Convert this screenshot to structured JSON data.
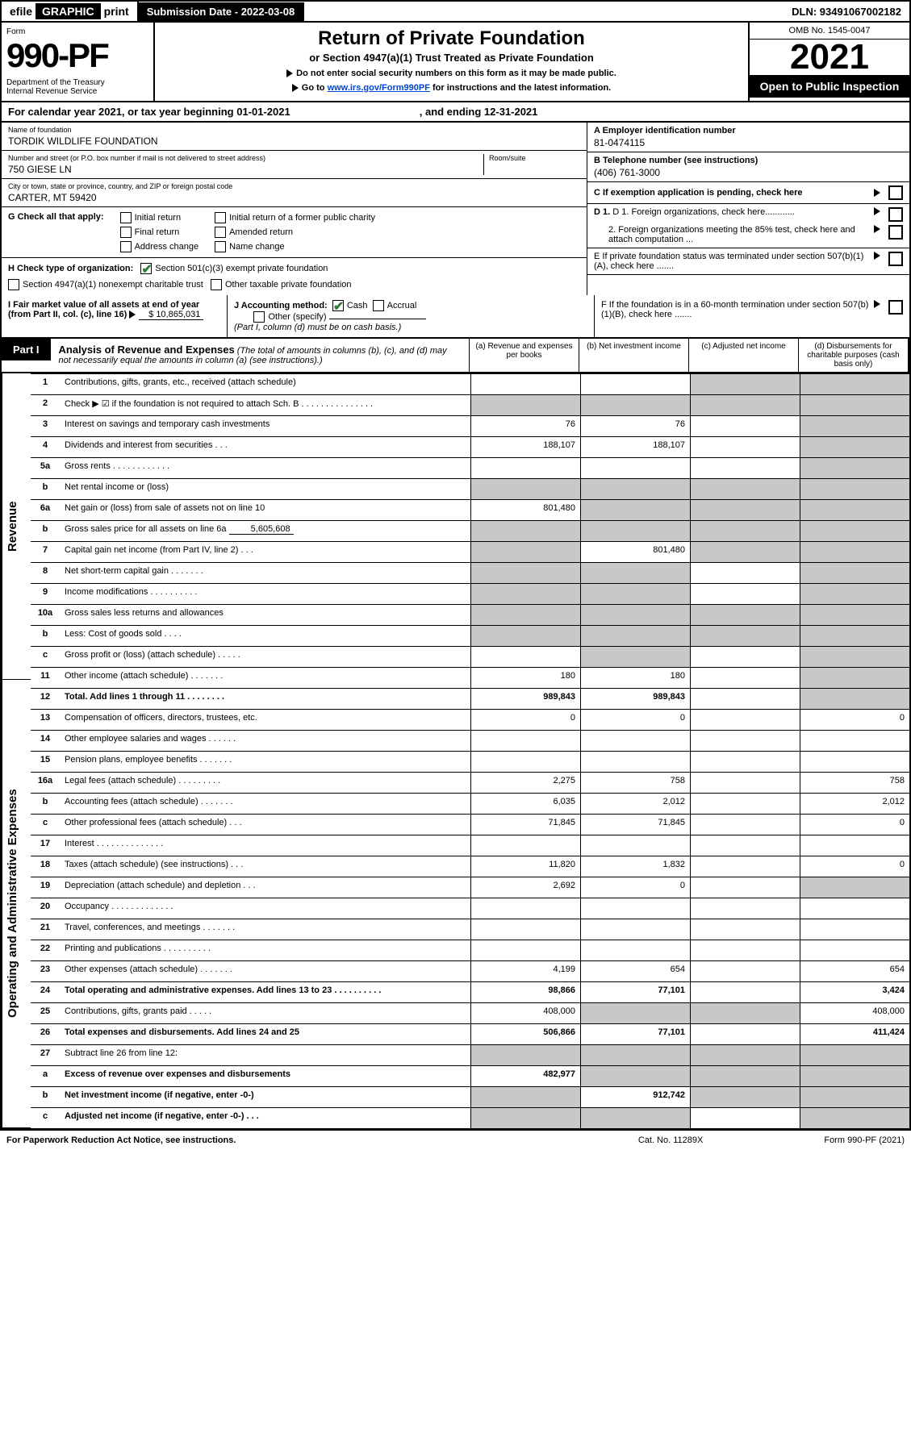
{
  "top": {
    "efile_pre": "efile",
    "efile_graphic": "GRAPHIC",
    "efile_post": "print",
    "submission_label": "Submission Date - 2022-03-08",
    "dln": "DLN: 93491067002182"
  },
  "header": {
    "form_word": "Form",
    "form_num": "990-PF",
    "dept": "Department of the Treasury\nInternal Revenue Service",
    "title": "Return of Private Foundation",
    "subtitle": "or Section 4947(a)(1) Trust Treated as Private Foundation",
    "note1": "Do not enter social security numbers on this form as it may be made public.",
    "note2_pre": "Go to ",
    "note2_link": "www.irs.gov/Form990PF",
    "note2_post": " for instructions and the latest information.",
    "omb": "OMB No. 1545-0047",
    "year": "2021",
    "open": "Open to Public Inspection"
  },
  "cal": {
    "text": "For calendar year 2021, or tax year beginning 01-01-2021",
    "ending": ", and ending 12-31-2021"
  },
  "info": {
    "name_lbl": "Name of foundation",
    "name_val": "TORDIK WILDLIFE FOUNDATION",
    "addr_lbl": "Number and street (or P.O. box number if mail is not delivered to street address)",
    "addr_val": "750 GIESE LN",
    "room_lbl": "Room/suite",
    "city_lbl": "City or town, state or province, country, and ZIP or foreign postal code",
    "city_val": "CARTER, MT  59420",
    "A_lbl": "A Employer identification number",
    "A_val": "81-0474115",
    "B_lbl": "B Telephone number (see instructions)",
    "B_val": "(406) 761-3000",
    "C_lbl": "C If exemption application is pending, check here",
    "D1": "D 1. Foreign organizations, check here............",
    "D2": "2. Foreign organizations meeting the 85% test, check here and attach computation ...",
    "E": "E  If private foundation status was terminated under section 507(b)(1)(A), check here .......",
    "F": "F  If the foundation is in a 60-month termination under section 507(b)(1)(B), check here .......",
    "G_lbl": "G Check all that apply:",
    "G_opts": [
      "Initial return",
      "Final return",
      "Address change",
      "Initial return of a former public charity",
      "Amended return",
      "Name change"
    ],
    "H_lbl": "H Check type of organization:",
    "H1": "Section 501(c)(3) exempt private foundation",
    "H2": "Section 4947(a)(1) nonexempt charitable trust",
    "H3": "Other taxable private foundation",
    "I_lbl": "I Fair market value of all assets at end of year (from Part II, col. (c), line 16)",
    "I_val": "$  10,865,031",
    "J_lbl": "J Accounting method:",
    "J_cash": "Cash",
    "J_accr": "Accrual",
    "J_other": "Other (specify)",
    "J_note": "(Part I, column (d) must be on cash basis.)"
  },
  "part1": {
    "tab": "Part I",
    "title": "Analysis of Revenue and Expenses",
    "desc": "(The total of amounts in columns (b), (c), and (d) may not necessarily equal the amounts in column (a) (see instructions).)",
    "col_a": "(a)  Revenue and expenses per books",
    "col_b": "(b)  Net investment income",
    "col_c": "(c)  Adjusted net income",
    "col_d": "(d)  Disbursements for charitable purposes (cash basis only)"
  },
  "sides": {
    "rev": "Revenue",
    "ops": "Operating and Administrative Expenses"
  },
  "rows": {
    "r1": {
      "n": "1",
      "d": "Contributions, gifts, grants, etc., received (attach schedule)"
    },
    "r2": {
      "n": "2",
      "d": "Check ▶ ☑ if the foundation is not required to attach Sch. B   .  .  .  .  .  .  .  .  .  .  .  .  .  .  ."
    },
    "r3": {
      "n": "3",
      "d": "Interest on savings and temporary cash investments",
      "a": "76",
      "b": "76"
    },
    "r4": {
      "n": "4",
      "d": "Dividends and interest from securities   .    .    .",
      "a": "188,107",
      "b": "188,107"
    },
    "r5a": {
      "n": "5a",
      "d": "Gross rents   .   .   .   .   .   .   .   .   .   .   .   ."
    },
    "r5b": {
      "n": "b",
      "d": "Net rental income or (loss)"
    },
    "r6a": {
      "n": "6a",
      "d": "Net gain or (loss) from sale of assets not on line 10",
      "a": "801,480"
    },
    "r6b": {
      "n": "b",
      "d": "Gross sales price for all assets on line 6a",
      "u": "5,605,608"
    },
    "r7": {
      "n": "7",
      "d": "Capital gain net income (from Part IV, line 2)   .    .    .",
      "b": "801,480"
    },
    "r8": {
      "n": "8",
      "d": "Net short-term capital gain   .   .   .   .   .   .   ."
    },
    "r9": {
      "n": "9",
      "d": "Income modifications  .   .   .   .   .   .   .   .   .   ."
    },
    "r10a": {
      "n": "10a",
      "d": "Gross sales less returns and allowances"
    },
    "r10b": {
      "n": "b",
      "d": "Less: Cost of goods sold   .    .    .    ."
    },
    "r10c": {
      "n": "c",
      "d": "Gross profit or (loss) (attach schedule)   .    .    .    .    ."
    },
    "r11": {
      "n": "11",
      "d": "Other income (attach schedule)   .   .   .   .   .   .   .",
      "a": "180",
      "b": "180"
    },
    "r12": {
      "n": "12",
      "d": "Total. Add lines 1 through 11   .   .   .   .   .   .   .   .",
      "a": "989,843",
      "b": "989,843",
      "bold": true
    },
    "r13": {
      "n": "13",
      "d": "Compensation of officers, directors, trustees, etc.",
      "a": "0",
      "b": "0",
      "dd": "0"
    },
    "r14": {
      "n": "14",
      "d": "Other employee salaries and wages   .   .   .   .   .   ."
    },
    "r15": {
      "n": "15",
      "d": "Pension plans, employee benefits   .   .   .   .   .   .   ."
    },
    "r16a": {
      "n": "16a",
      "d": "Legal fees (attach schedule)  .   .   .   .   .   .   .   .   .",
      "a": "2,275",
      "b": "758",
      "dd": "758"
    },
    "r16b": {
      "n": "b",
      "d": "Accounting fees (attach schedule)  .   .   .   .   .   .   .",
      "a": "6,035",
      "b": "2,012",
      "dd": "2,012"
    },
    "r16c": {
      "n": "c",
      "d": "Other professional fees (attach schedule)   .    .    .",
      "a": "71,845",
      "b": "71,845",
      "dd": "0"
    },
    "r17": {
      "n": "17",
      "d": "Interest  .   .   .   .   .   .   .   .   .   .   .   .   .   ."
    },
    "r18": {
      "n": "18",
      "d": "Taxes (attach schedule) (see instructions)   .    .    .",
      "a": "11,820",
      "b": "1,832",
      "dd": "0"
    },
    "r19": {
      "n": "19",
      "d": "Depreciation (attach schedule) and depletion   .    .    .",
      "a": "2,692",
      "b": "0"
    },
    "r20": {
      "n": "20",
      "d": "Occupancy  .   .   .   .   .   .   .   .   .   .   .   .   ."
    },
    "r21": {
      "n": "21",
      "d": "Travel, conferences, and meetings  .   .   .   .   .   .   ."
    },
    "r22": {
      "n": "22",
      "d": "Printing and publications  .   .   .   .   .   .   .   .   .   ."
    },
    "r23": {
      "n": "23",
      "d": "Other expenses (attach schedule)  .   .   .   .   .   .   .",
      "a": "4,199",
      "b": "654",
      "dd": "654"
    },
    "r24": {
      "n": "24",
      "d": "Total operating and administrative expenses. Add lines 13 to 23   .   .   .   .   .   .   .   .   .   .",
      "a": "98,866",
      "b": "77,101",
      "dd": "3,424",
      "bold": true
    },
    "r25": {
      "n": "25",
      "d": "Contributions, gifts, grants paid   .    .    .    .    .",
      "a": "408,000",
      "dd": "408,000"
    },
    "r26": {
      "n": "26",
      "d": "Total expenses and disbursements. Add lines 24 and 25",
      "a": "506,866",
      "b": "77,101",
      "dd": "411,424",
      "bold": true
    },
    "r27": {
      "n": "27",
      "d": "Subtract line 26 from line 12:"
    },
    "r27a": {
      "n": "a",
      "d": "Excess of revenue over expenses and disbursements",
      "a": "482,977",
      "bold": true
    },
    "r27b": {
      "n": "b",
      "d": "Net investment income (if negative, enter -0-)",
      "b": "912,742",
      "bold": true
    },
    "r27c": {
      "n": "c",
      "d": "Adjusted net income (if negative, enter -0-)   .    .    .",
      "bold": true
    }
  },
  "foot": {
    "l": "For Paperwork Reduction Act Notice, see instructions.",
    "c": "Cat. No. 11289X",
    "r": "Form 990-PF (2021)"
  },
  "greys": {
    "r1": [
      "c",
      "d"
    ],
    "r2": [
      "a",
      "b",
      "c",
      "d"
    ],
    "r3": [
      "d"
    ],
    "r4": [
      "d"
    ],
    "r5a": [
      "d"
    ],
    "r5b": [
      "a",
      "b",
      "c",
      "d"
    ],
    "r6a": [
      "b",
      "c",
      "d"
    ],
    "r6b": [
      "a",
      "b",
      "c",
      "d"
    ],
    "r7": [
      "a",
      "c",
      "d"
    ],
    "r8": [
      "a",
      "b",
      "d"
    ],
    "r9": [
      "a",
      "b",
      "d"
    ],
    "r10a": [
      "a",
      "b",
      "c",
      "d"
    ],
    "r10b": [
      "a",
      "b",
      "c",
      "d"
    ],
    "r10c": [
      "b",
      "d"
    ],
    "r11": [
      "d"
    ],
    "r12": [
      "d"
    ],
    "r19": [
      "d"
    ],
    "r25": [
      "b",
      "c"
    ],
    "r27": [
      "a",
      "b",
      "c",
      "d"
    ],
    "r27a": [
      "b",
      "c",
      "d"
    ],
    "r27b": [
      "a",
      "c",
      "d"
    ],
    "r27c": [
      "a",
      "b",
      "d"
    ]
  }
}
